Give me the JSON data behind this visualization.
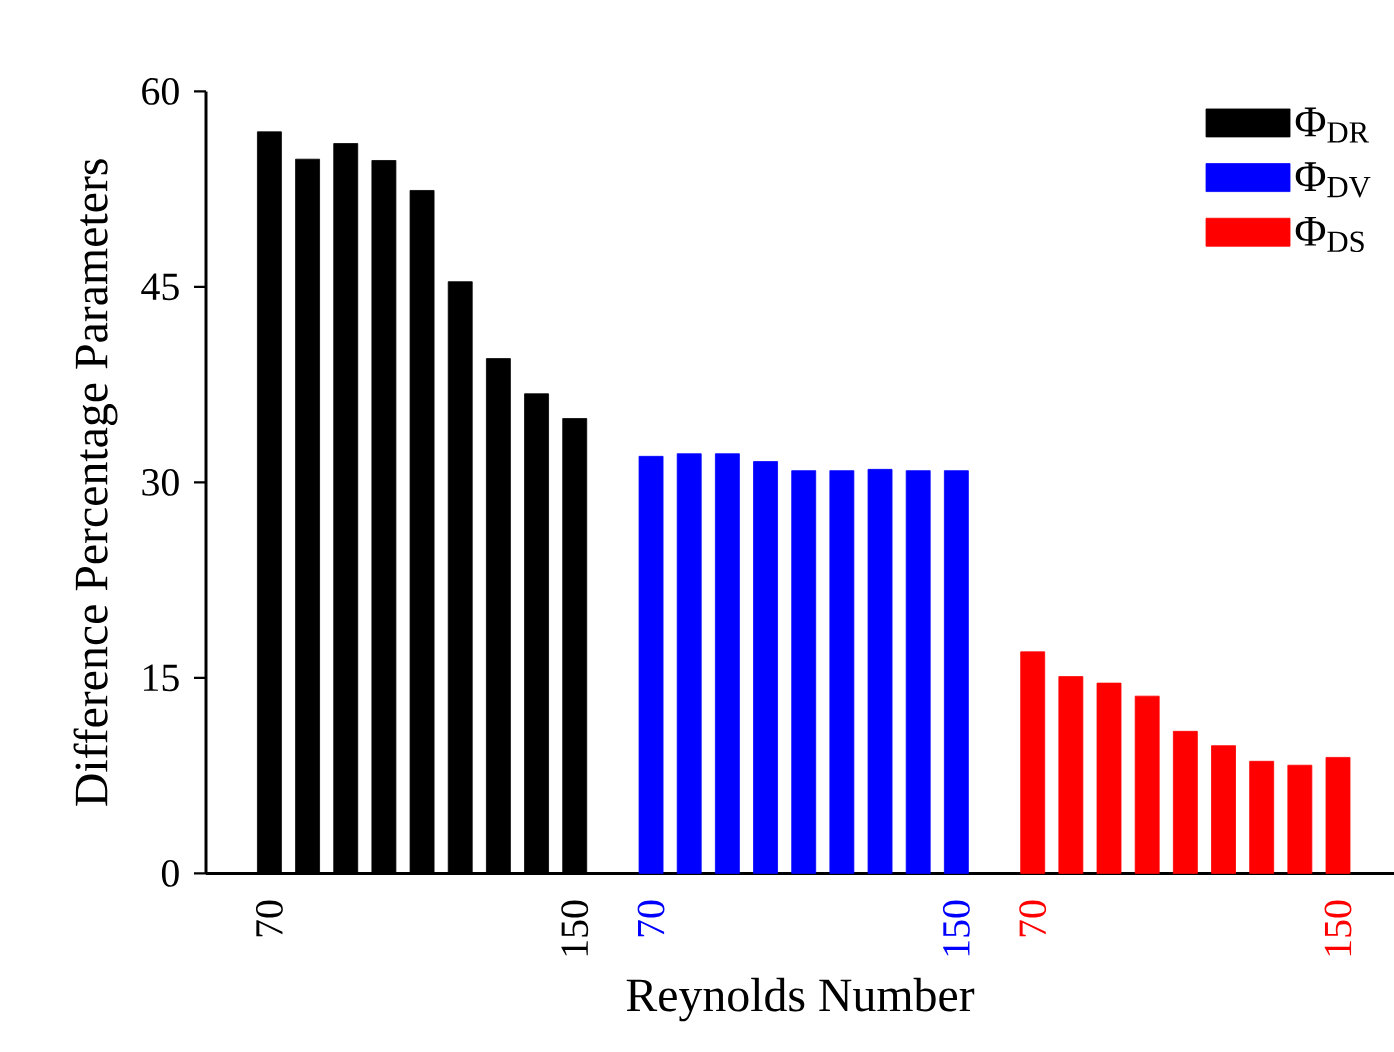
{
  "chart_data": {
    "type": "bar",
    "xlabel": "Reynolds Number",
    "ylabel": "Difference Percentage Parameters",
    "categories": [
      "70",
      null,
      null,
      null,
      null,
      null,
      null,
      null,
      "150",
      null,
      "70",
      null,
      null,
      null,
      null,
      null,
      null,
      null,
      "150",
      null,
      "70",
      null,
      null,
      null,
      null,
      null,
      null,
      null,
      "150"
    ],
    "series": [
      {
        "name": "Φ$_{DR}$",
        "color": "#000000",
        "values": [
          56.9,
          54.8,
          56.0,
          54.7,
          52.4,
          45.4,
          39.5,
          36.8,
          34.9,
          null,
          null,
          null,
          null,
          null,
          null,
          null,
          null,
          null,
          null,
          null,
          null,
          null,
          null,
          null,
          null,
          null,
          null,
          null,
          null
        ]
      },
      {
        "name": "Φ$_{DV}$",
        "color": "#0000ff",
        "values": [
          null,
          null,
          null,
          null,
          null,
          null,
          null,
          null,
          null,
          null,
          32.0,
          32.2,
          32.2,
          31.6,
          30.9,
          30.9,
          31.0,
          30.9,
          30.9,
          null,
          null,
          null,
          null,
          null,
          null,
          null,
          null,
          null,
          null
        ]
      },
      {
        "name": "Φ$_{DS}$",
        "color": "#ff0000",
        "values": [
          null,
          null,
          null,
          null,
          null,
          null,
          null,
          null,
          null,
          null,
          null,
          null,
          null,
          null,
          null,
          null,
          null,
          null,
          null,
          null,
          17.0,
          15.1,
          14.6,
          13.6,
          10.9,
          9.8,
          8.6,
          8.3,
          8.9
        ]
      }
    ],
    "ylim": [
      0,
      60
    ],
    "yticks": [
      0,
      15,
      30,
      45,
      60
    ],
    "legend": "top right"
  }
}
